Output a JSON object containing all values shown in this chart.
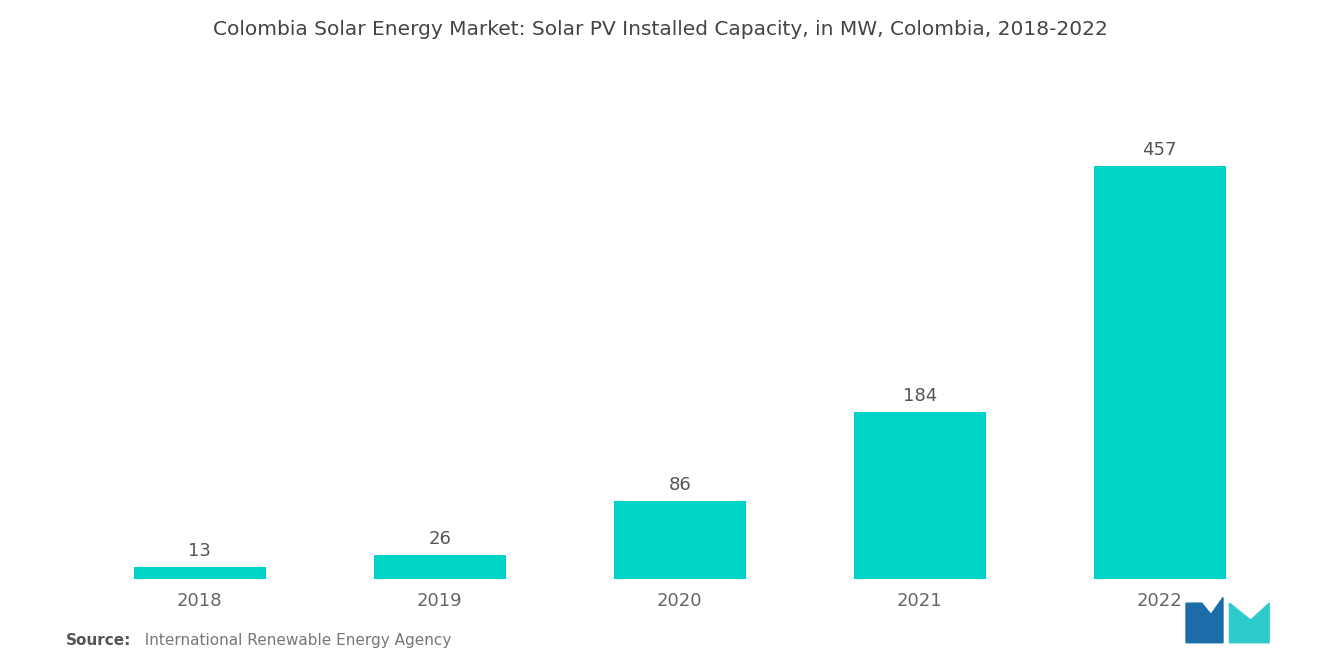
{
  "title": "Colombia Solar Energy Market: Solar PV Installed Capacity, in MW, Colombia, 2018-2022",
  "categories": [
    "2018",
    "2019",
    "2020",
    "2021",
    "2022"
  ],
  "values": [
    13,
    26,
    86,
    184,
    457
  ],
  "bar_color": "#00d4c8",
  "background_color": "#ffffff",
  "title_fontsize": 14.5,
  "label_fontsize": 13,
  "tick_fontsize": 13,
  "source_bold": "Source:",
  "source_normal": "  International Renewable Energy Agency",
  "source_fontsize": 11,
  "ylim": [
    0,
    560
  ],
  "bar_width": 0.55,
  "logo_left_color": "#1b6ca8",
  "logo_right_color": "#2ecaca"
}
